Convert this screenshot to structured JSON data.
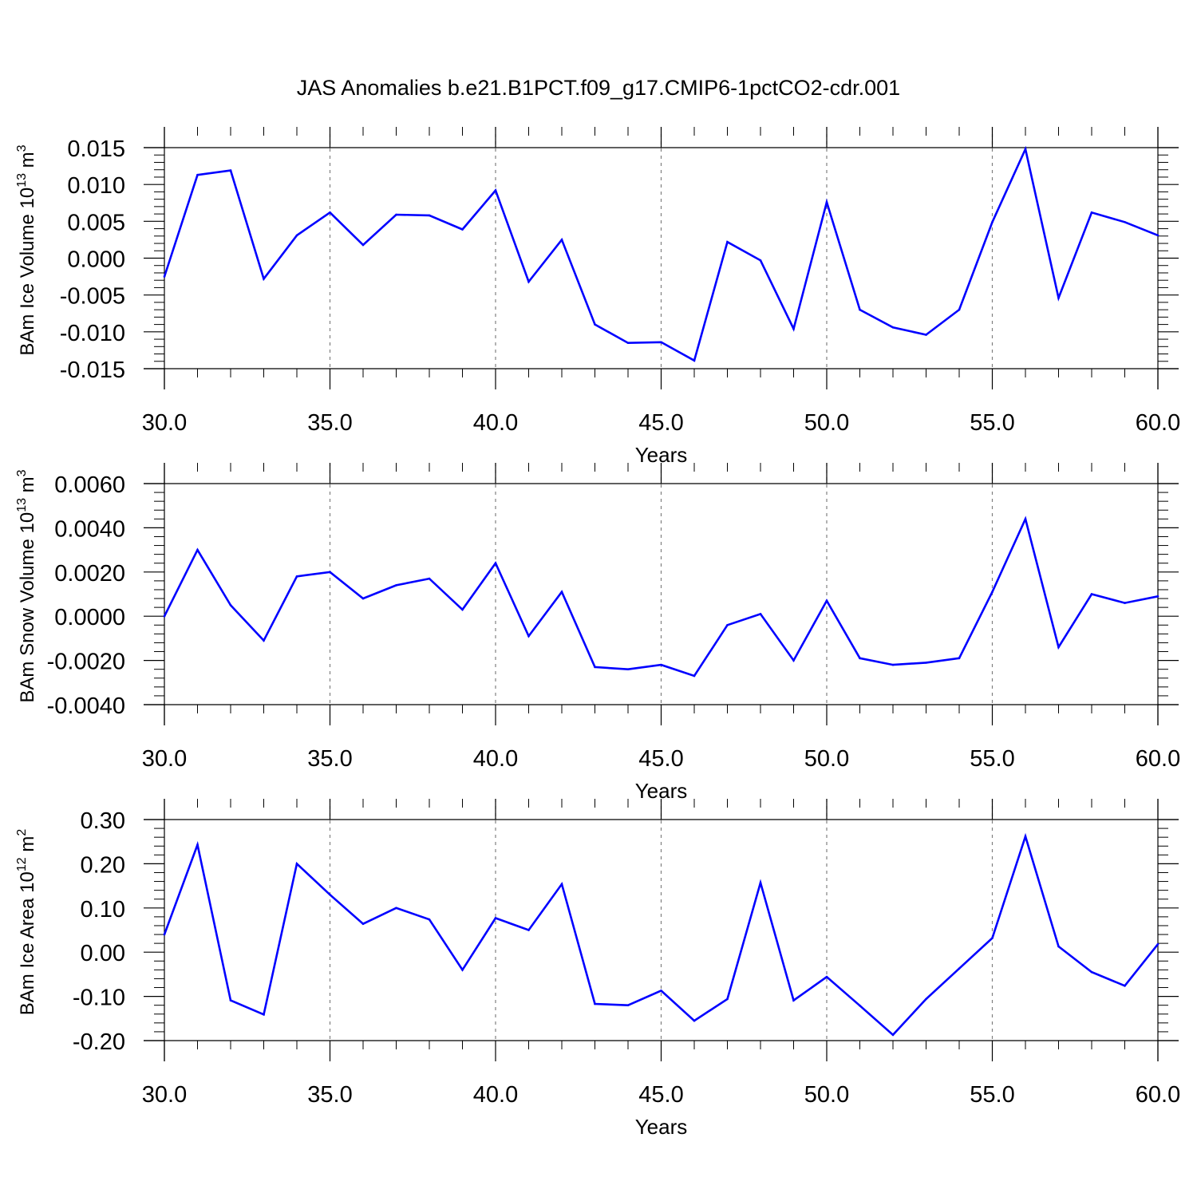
{
  "title": "JAS Anomalies b.e21.B1PCT.f09_g17.CMIP6-1pctCO2-cdr.001",
  "colors": {
    "line": "#0000ff",
    "axis": "#000000",
    "grid": "#808080"
  },
  "chart_data": [
    {
      "type": "line",
      "ylabel_main": "BAm Ice Volume 10",
      "ylabel_sup": "13",
      "ylabel_unit": " m",
      "ylabel_unit_sup": "3",
      "xlabel": "Years",
      "xlim": [
        30,
        60
      ],
      "ylim": [
        -0.015,
        0.015
      ],
      "x_ticks": [
        30,
        35,
        40,
        45,
        50,
        55,
        60
      ],
      "x_tick_labels": [
        "30.0",
        "35.0",
        "40.0",
        "45.0",
        "50.0",
        "55.0",
        "60.0"
      ],
      "y_ticks": [
        -0.015,
        -0.01,
        -0.005,
        0.0,
        0.005,
        0.01,
        0.015
      ],
      "y_tick_labels": [
        "-0.015",
        "-0.010",
        "-0.005",
        "0.000",
        "0.005",
        "0.010",
        "0.015"
      ],
      "grid": "vertical dashed at x major ticks",
      "x": [
        30,
        31,
        32,
        33,
        34,
        35,
        36,
        37,
        38,
        39,
        40,
        41,
        42,
        43,
        44,
        45,
        46,
        47,
        48,
        49,
        50,
        51,
        52,
        53,
        54,
        55,
        56,
        57,
        58,
        59,
        60
      ],
      "values": [
        -0.0025,
        0.0113,
        0.0119,
        -0.0028,
        0.0031,
        0.0062,
        0.0018,
        0.0059,
        0.0058,
        0.0039,
        0.0092,
        -0.0032,
        0.0025,
        -0.009,
        -0.0115,
        -0.0114,
        -0.0139,
        0.0022,
        -0.0003,
        -0.0096,
        0.0076,
        -0.007,
        -0.0094,
        -0.0104,
        -0.007,
        0.0049,
        0.0148,
        -0.0054,
        0.0062,
        0.0049,
        0.0031
      ]
    },
    {
      "type": "line",
      "ylabel_main": "BAm Snow Volume 10",
      "ylabel_sup": "13",
      "ylabel_unit": " m",
      "ylabel_unit_sup": "3",
      "xlabel": "Years",
      "xlim": [
        30,
        60
      ],
      "ylim": [
        -0.004,
        0.006
      ],
      "x_ticks": [
        30,
        35,
        40,
        45,
        50,
        55,
        60
      ],
      "x_tick_labels": [
        "30.0",
        "35.0",
        "40.0",
        "45.0",
        "50.0",
        "55.0",
        "60.0"
      ],
      "y_ticks": [
        -0.004,
        -0.002,
        0.0,
        0.002,
        0.004,
        0.006
      ],
      "y_tick_labels": [
        "-0.0040",
        "-0.0020",
        "0.0000",
        "0.0020",
        "0.0040",
        "0.0060"
      ],
      "grid": "vertical dashed at x major ticks",
      "x": [
        30,
        31,
        32,
        33,
        34,
        35,
        36,
        37,
        38,
        39,
        40,
        41,
        42,
        43,
        44,
        45,
        46,
        47,
        48,
        49,
        50,
        51,
        52,
        53,
        54,
        55,
        56,
        57,
        58,
        59,
        60
      ],
      "values": [
        0.0,
        0.003,
        0.0005,
        -0.0011,
        0.0018,
        0.002,
        0.0008,
        0.0014,
        0.0017,
        0.0003,
        0.0024,
        -0.0009,
        0.0011,
        -0.0023,
        -0.0024,
        -0.0022,
        -0.0027,
        -0.0004,
        0.0001,
        -0.002,
        0.0007,
        -0.0019,
        -0.0022,
        -0.0021,
        -0.0019,
        0.0011,
        0.0044,
        -0.0014,
        0.001,
        0.0006,
        0.0009
      ]
    },
    {
      "type": "line",
      "ylabel_main": "BAm Ice Area 10",
      "ylabel_sup": "12",
      "ylabel_unit": " m",
      "ylabel_unit_sup": "2",
      "xlabel": "Years",
      "xlim": [
        30,
        60
      ],
      "ylim": [
        -0.2,
        0.3
      ],
      "x_ticks": [
        30,
        35,
        40,
        45,
        50,
        55,
        60
      ],
      "x_tick_labels": [
        "30.0",
        "35.0",
        "40.0",
        "45.0",
        "50.0",
        "55.0",
        "60.0"
      ],
      "y_ticks": [
        -0.2,
        -0.1,
        0.0,
        0.1,
        0.2,
        0.3
      ],
      "y_tick_labels": [
        "-0.20",
        "-0.10",
        "0.00",
        "0.10",
        "0.20",
        "0.30"
      ],
      "grid": "vertical dashed at x major ticks",
      "x": [
        30,
        31,
        32,
        33,
        34,
        35,
        36,
        37,
        38,
        39,
        40,
        41,
        42,
        43,
        44,
        45,
        46,
        47,
        48,
        49,
        50,
        51,
        52,
        53,
        54,
        55,
        56,
        57,
        58,
        59,
        60
      ],
      "values": [
        0.04,
        0.243,
        -0.109,
        -0.141,
        0.2,
        0.13,
        0.064,
        0.1,
        0.074,
        -0.04,
        0.077,
        0.05,
        0.154,
        -0.117,
        -0.12,
        -0.087,
        -0.155,
        -0.106,
        0.157,
        -0.109,
        -0.056,
        -0.121,
        -0.187,
        -0.106,
        -0.037,
        0.032,
        0.262,
        0.013,
        -0.045,
        -0.076,
        0.018
      ]
    }
  ]
}
